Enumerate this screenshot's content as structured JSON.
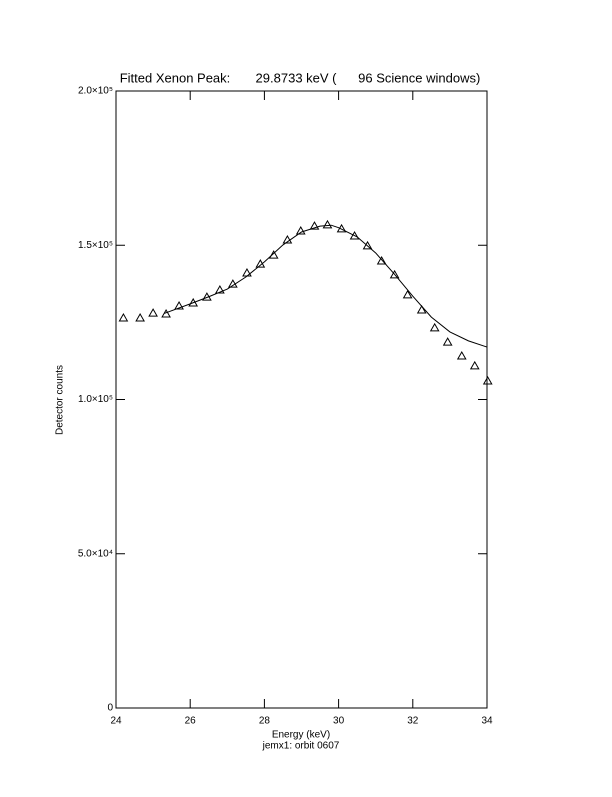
{
  "chart_data": {
    "type": "scatter",
    "title": "Fitted Xenon Peak:       29.8733 keV (      96 Science windows)",
    "x_label": "Energy (keV)",
    "y_label": "Detector counts",
    "subtitle": "jemx1: orbit 0607",
    "xlim": [
      24,
      34
    ],
    "xticks": [
      24,
      26,
      28,
      30,
      32,
      34
    ],
    "ylim": [
      0,
      200000
    ],
    "yticks": [
      0,
      {
        "value": 50000,
        "label": "5.0×10⁴"
      },
      {
        "value": 100000,
        "label": "1.0×10⁵"
      },
      {
        "value": 150000,
        "label": "1.5×10⁵"
      },
      {
        "value": 200000,
        "label": "2.0×10⁵"
      }
    ],
    "series": [
      {
        "color": "#000000",
        "marker": "triangle",
        "x": [
          24.2,
          24.65,
          25.0,
          25.35,
          25.7,
          26.08,
          26.45,
          26.8,
          27.15,
          27.53,
          27.89,
          28.25,
          28.62,
          28.98,
          29.35,
          29.7,
          30.08,
          30.43,
          30.78,
          31.16,
          31.51,
          31.86,
          32.24,
          32.59,
          32.94,
          33.32,
          33.67,
          34.02
        ],
        "values": [
          126400,
          126400,
          128000,
          127700,
          130300,
          131300,
          133200,
          135500,
          137400,
          141000,
          143900,
          146800,
          151700,
          154600,
          156200,
          156600,
          155300,
          153000,
          149800,
          144900,
          140400,
          133900,
          129000,
          123200,
          118600,
          114100,
          110900,
          106000
        ]
      },
      {
        "color": "#000000",
        "marker": "line",
        "x": [
          25.3,
          26,
          26.5,
          27,
          27.5,
          28,
          28.5,
          29,
          29.5,
          29.8,
          30,
          30.5,
          31,
          31.5,
          32,
          32.5,
          33,
          33.5,
          34
        ],
        "values": [
          127900,
          131000,
          133300,
          135800,
          139700,
          144600,
          150100,
          154300,
          156200,
          156500,
          155700,
          152700,
          147500,
          140700,
          133500,
          126700,
          121900,
          119000,
          117000
        ]
      }
    ]
  }
}
